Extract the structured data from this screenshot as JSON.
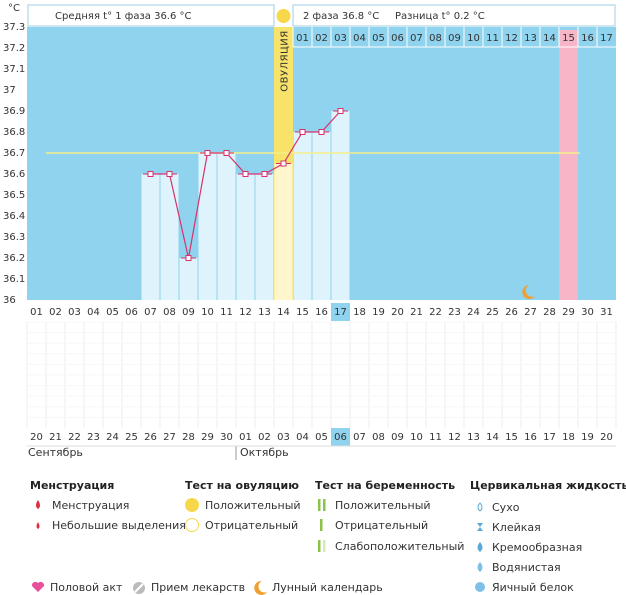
{
  "header": {
    "phase1": "Средняя t° 1 фаза 36.6 °C",
    "phase2": "2 фаза 36.8 °C",
    "diff": "Разница t° 0.2 °C"
  },
  "chart_data": {
    "type": "line",
    "y_unit": "°C",
    "categories": [
      "01",
      "02",
      "03",
      "04",
      "05",
      "06",
      "07",
      "08",
      "09",
      "10",
      "11",
      "12",
      "13",
      "14",
      "15",
      "16",
      "17",
      "18",
      "19",
      "20",
      "21",
      "22",
      "23",
      "24",
      "25",
      "26",
      "27",
      "28",
      "29",
      "30",
      "31"
    ],
    "values": [
      null,
      null,
      null,
      null,
      null,
      null,
      36.6,
      36.6,
      36.2,
      36.7,
      36.7,
      36.6,
      36.6,
      36.65,
      36.8,
      36.8,
      36.9,
      null,
      null,
      null,
      null,
      null,
      null,
      null,
      null,
      null,
      null,
      null,
      null,
      null,
      null
    ],
    "ylim": [
      36,
      37.3
    ],
    "yticks": [
      36,
      36.1,
      36.2,
      36.3,
      36.4,
      36.5,
      36.6,
      36.7,
      36.8,
      36.9,
      37,
      37.1,
      37.2,
      37.3
    ],
    "coverline": 36.7,
    "ovulation_day": "14",
    "ovulation_label": "ОВУЛЯЦИЯ",
    "current_day": "17",
    "period_day": "29",
    "moon_day": "27",
    "next_cycle_days": [
      "01",
      "02",
      "03",
      "04",
      "05",
      "06",
      "07",
      "08",
      "09",
      "10",
      "11",
      "12",
      "13",
      "14",
      "15",
      "16",
      "17"
    ],
    "dates": [
      {
        "label": "20",
        "red": false
      },
      {
        "label": "21",
        "red": false
      },
      {
        "label": "22",
        "red": false
      },
      {
        "label": "23",
        "red": false
      },
      {
        "label": "24",
        "red": false
      },
      {
        "label": "25",
        "red": true
      },
      {
        "label": "26",
        "red": true
      },
      {
        "label": "27",
        "red": false
      },
      {
        "label": "28",
        "red": false
      },
      {
        "label": "29",
        "red": false
      },
      {
        "label": "30",
        "red": false
      },
      {
        "label": "01",
        "red": false
      },
      {
        "label": "02",
        "red": true
      },
      {
        "label": "03",
        "red": true
      },
      {
        "label": "04",
        "red": false
      },
      {
        "label": "05",
        "red": false
      },
      {
        "label": "06",
        "red": false
      },
      {
        "label": "07",
        "red": false
      },
      {
        "label": "08",
        "red": false
      },
      {
        "label": "09",
        "red": true
      },
      {
        "label": "10",
        "red": true
      },
      {
        "label": "11",
        "red": false
      },
      {
        "label": "12",
        "red": false
      },
      {
        "label": "13",
        "red": false
      },
      {
        "label": "14",
        "red": false
      },
      {
        "label": "15",
        "red": false
      },
      {
        "label": "16",
        "red": true
      },
      {
        "label": "17",
        "red": true
      },
      {
        "label": "18",
        "red": false
      },
      {
        "label": "19",
        "red": false
      },
      {
        "label": "20",
        "red": false
      }
    ],
    "today": "06",
    "months": [
      "Сентябрь",
      "Октябрь"
    ]
  },
  "legend": {
    "menstruation": {
      "title": "Менструация",
      "items": [
        "Менструация",
        "Небольшие выделения"
      ]
    },
    "ovulation_test": {
      "title": "Тест на овуляцию",
      "items": [
        "Положительный",
        "Отрицательный"
      ]
    },
    "pregnancy_test": {
      "title": "Тест на беременность",
      "items": [
        "Положительный",
        "Отрицательный",
        "Слабоположительный"
      ]
    },
    "cervical": {
      "title": "Цервикальная жидкость",
      "items": [
        "Сухо",
        "Клейкая",
        "Кремообразная",
        "Водянистая",
        "Яичный белок"
      ]
    },
    "other": [
      "Половой акт",
      "Прием лекарств",
      "Лунный календарь"
    ]
  }
}
